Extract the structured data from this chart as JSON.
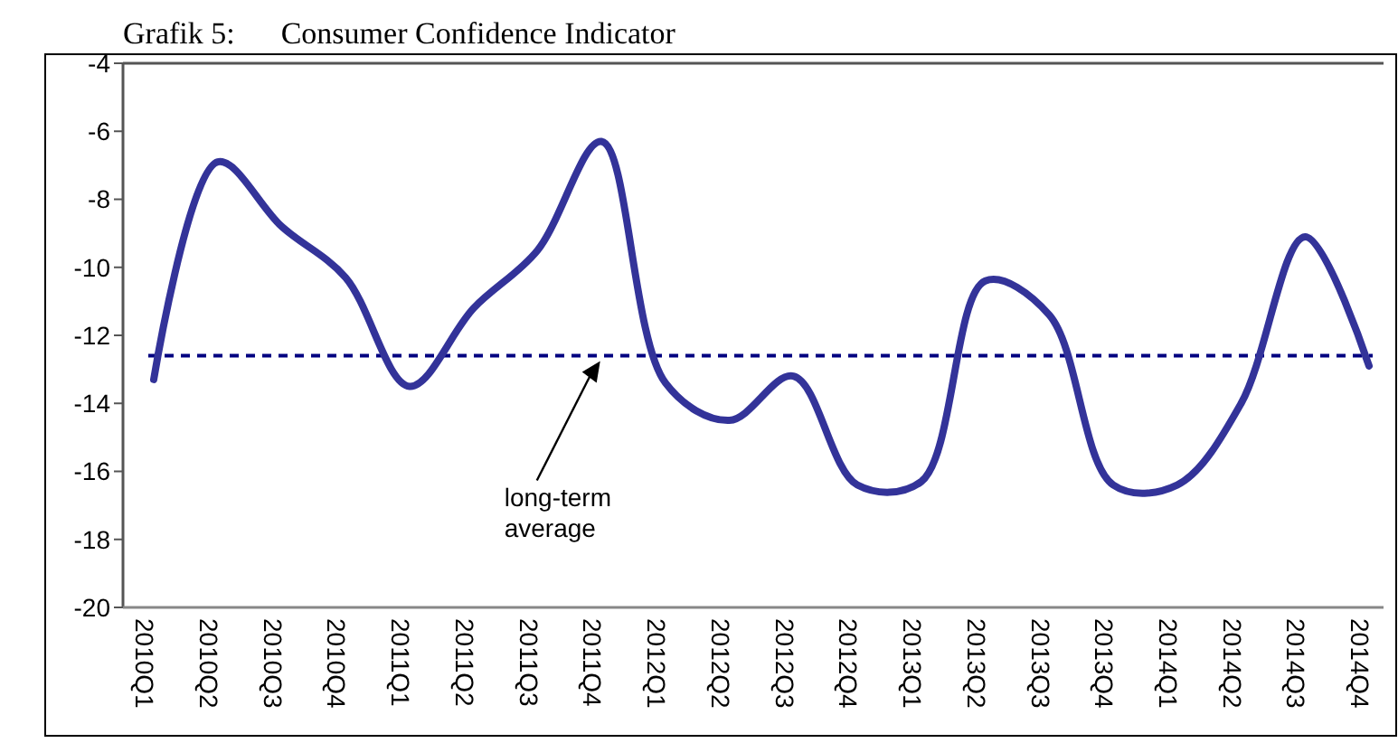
{
  "chart_data": {
    "type": "line",
    "title": "Grafik 5:      Consumer Confidence Indicator",
    "categories": [
      "2010Q1",
      "2010Q2",
      "2010Q3",
      "2010Q4",
      "2011Q1",
      "2011Q2",
      "2011Q3",
      "2011Q4",
      "2012Q1",
      "2012Q2",
      "2012Q3",
      "2012Q4",
      "2013Q1",
      "2013Q2",
      "2013Q3",
      "2013Q4",
      "2014Q1",
      "2014Q2",
      "2014Q3",
      "2014Q4"
    ],
    "series": [
      {
        "color": "#333399",
        "values": [
          -13.3,
          -6.9,
          -8.8,
          -10.3,
          -13.5,
          -11.2,
          -9.5,
          -6.3,
          -13.4,
          -14.5,
          -13.2,
          -16.4,
          -16.3,
          -10.4,
          -11.4,
          -16.4,
          -16.4,
          -14.0,
          -9.1,
          -12.9
        ]
      }
    ],
    "ylim": [
      -20,
      -4
    ],
    "yticks": [
      -20,
      -18,
      -16,
      -14,
      -12,
      -10,
      -8,
      -6,
      -4
    ],
    "grid": false,
    "marker": "none",
    "line_style": "solid",
    "ref_lines": [
      {
        "axis": "y",
        "value": -12.6,
        "color": "#000080",
        "line_style": "dashed"
      }
    ],
    "annotations": [
      "long-term\naverage"
    ]
  }
}
